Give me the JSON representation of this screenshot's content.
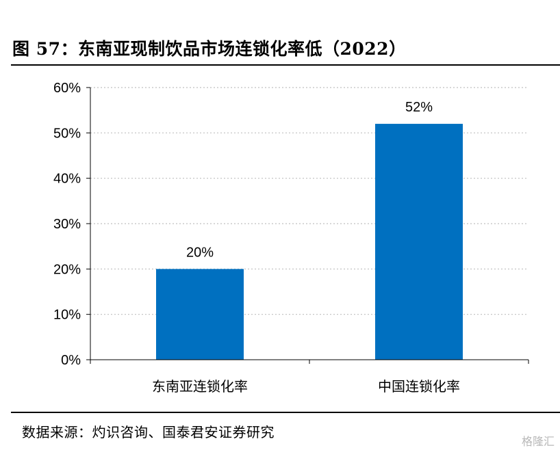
{
  "figure_title": "图 57：东南亚现制饮品市场连锁化率低（2022）",
  "source_note": "数据来源：灼识咨询、国泰君安证券研究",
  "watermark": "格隆汇",
  "colors": {
    "bar": "#0070C0",
    "grid": "#bfbfbf",
    "axis": "#000000"
  },
  "chart_data": {
    "type": "bar",
    "title": "东南亚现制饮品市场连锁化率低（2022）",
    "categories": [
      "东南亚连锁化率",
      "中国连锁化率"
    ],
    "values": [
      20,
      52
    ],
    "value_labels": [
      "20%",
      "52%"
    ],
    "ylim": [
      0,
      60
    ],
    "yticks": [
      0,
      10,
      20,
      30,
      40,
      50,
      60
    ],
    "ytick_labels": [
      "0%",
      "10%",
      "20%",
      "30%",
      "40%",
      "50%",
      "60%"
    ],
    "xlabel": "",
    "ylabel": "",
    "grid": true,
    "legend": "none"
  }
}
